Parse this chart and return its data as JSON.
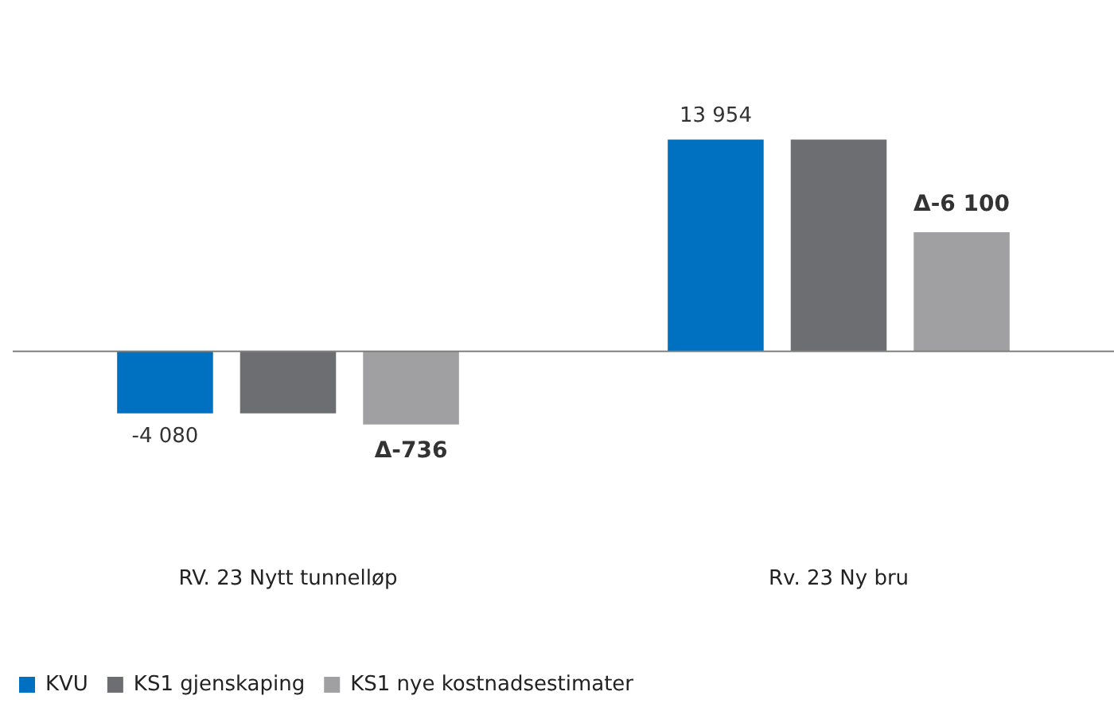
{
  "chart_data": {
    "type": "bar",
    "categories": [
      "RV. 23 Nytt tunnelløp",
      "Rv. 23 Ny bru"
    ],
    "series": [
      {
        "name": "KVU",
        "color": "#0070c0",
        "values": [
          -4080,
          13954
        ],
        "value_labels": [
          "-4 080",
          "13 954"
        ]
      },
      {
        "name": "KS1 gjenskaping",
        "color": "#6d6e71",
        "values": [
          -4080,
          13954
        ]
      },
      {
        "name": "KS1 nye kostnadsestimater",
        "color": "#a0a0a3",
        "values": [
          -4816,
          7854
        ]
      }
    ],
    "annotations": [
      "Δ-736",
      "Δ-6 100"
    ],
    "grid": false,
    "legend": "bottom"
  }
}
